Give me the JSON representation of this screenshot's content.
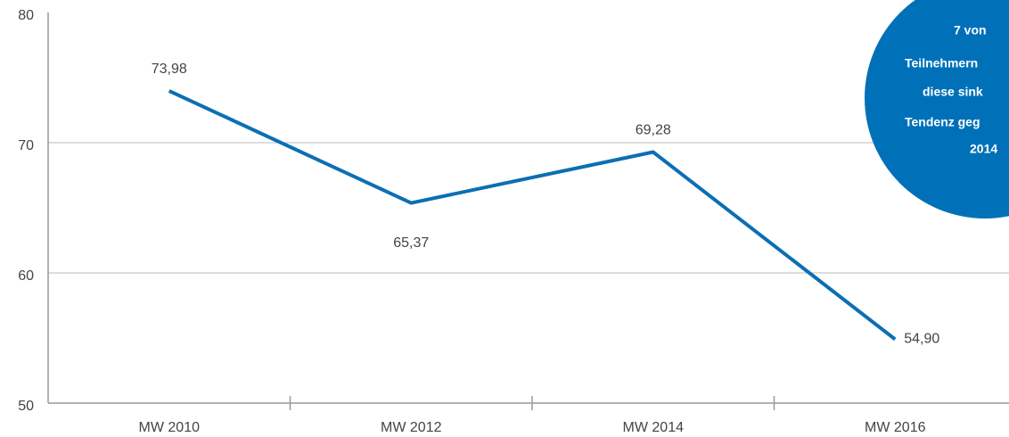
{
  "chart_data": {
    "type": "line",
    "categories": [
      "MW 2010",
      "MW 2012",
      "MW 2014",
      "MW 2016"
    ],
    "series": [
      {
        "color": "#0b6fb4",
        "values": [
          73.98,
          65.37,
          69.28,
          54.9
        ],
        "value_labels": [
          "73,98",
          "65,37",
          "69,28",
          "54,90"
        ]
      }
    ],
    "ylim": [
      50,
      80
    ],
    "yticks": [
      50,
      60,
      70,
      80
    ],
    "grid": true,
    "annotation": {
      "color": "#0071b9",
      "lines": [
        "7 von",
        "Teilnehmern",
        "diese sink",
        "Tendenz geg",
        "2014"
      ]
    }
  }
}
